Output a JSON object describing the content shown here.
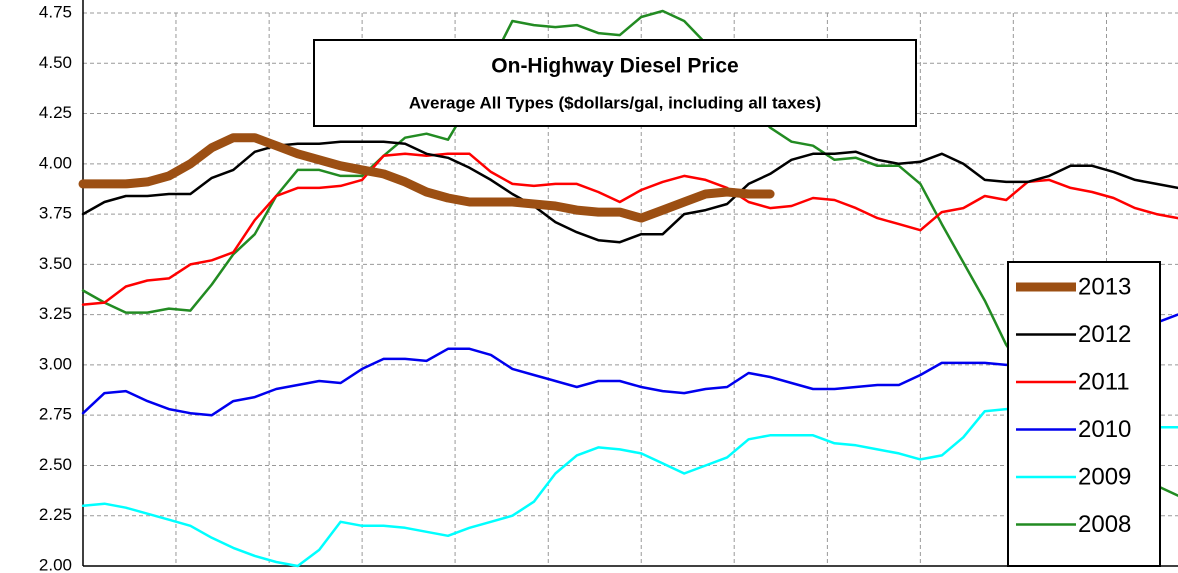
{
  "chart_data": {
    "type": "line",
    "title": "On-Highway Diesel Price",
    "subtitle": "Average All Types ($dollars/gal, including all taxes)",
    "x": [
      1,
      2,
      3,
      4,
      5,
      6,
      7,
      8,
      9,
      10,
      11,
      12,
      13,
      14,
      15,
      16,
      17,
      18,
      19,
      20,
      21,
      22,
      23,
      24,
      25,
      26,
      27,
      28,
      29,
      30,
      31,
      32,
      33,
      34,
      35,
      36,
      37,
      38,
      39,
      40,
      41,
      42,
      43,
      44,
      45,
      46,
      47,
      48,
      49,
      50,
      51,
      52
    ],
    "xlim": [
      1,
      52
    ],
    "xticks": [
      1,
      5.33,
      9.67,
      14,
      18.33,
      22.67,
      27,
      31.33,
      35.67,
      40,
      44.33,
      48.67
    ],
    "ylim": [
      2,
      4.75
    ],
    "yticks": [
      {
        "value": 2,
        "label": "2.00"
      },
      {
        "value": 2.25,
        "label": "2.25"
      },
      {
        "value": 2.5,
        "label": "2.50"
      },
      {
        "value": 2.75,
        "label": "2.75"
      },
      {
        "value": 3,
        "label": "3.00"
      },
      {
        "value": 3.25,
        "label": "3.25"
      },
      {
        "value": 3.5,
        "label": "3.50"
      },
      {
        "value": 3.75,
        "label": "3.75"
      },
      {
        "value": 4,
        "label": "4.00"
      },
      {
        "value": 4.25,
        "label": "4.25"
      },
      {
        "value": 4.5,
        "label": "4.50"
      },
      {
        "value": 4.75,
        "label": "4.75"
      }
    ],
    "grid": true,
    "legend": "bottom-right",
    "series": [
      {
        "name": "2013",
        "color": "#9c4f13",
        "width": 9,
        "values": [
          3.9,
          3.9,
          3.9,
          3.91,
          3.94,
          4.0,
          4.08,
          4.13,
          4.13,
          4.09,
          4.05,
          4.02,
          3.99,
          3.97,
          3.95,
          3.91,
          3.86,
          3.83,
          3.81,
          3.81,
          3.81,
          3.8,
          3.79,
          3.77,
          3.76,
          3.76,
          3.73,
          3.77,
          3.81,
          3.85,
          3.86,
          3.85,
          3.85,
          null,
          null,
          null,
          null,
          null,
          null,
          null,
          null,
          null,
          null,
          null,
          null,
          null,
          null,
          null,
          null,
          null,
          null,
          null
        ]
      },
      {
        "name": "2012",
        "color": "#000000",
        "width": 2.5,
        "values": [
          3.75,
          3.81,
          3.84,
          3.84,
          3.85,
          3.85,
          3.93,
          3.97,
          4.06,
          4.09,
          4.1,
          4.1,
          4.11,
          4.11,
          4.11,
          4.1,
          4.05,
          4.03,
          3.98,
          3.92,
          3.85,
          3.79,
          3.71,
          3.66,
          3.62,
          3.61,
          3.65,
          3.65,
          3.75,
          3.77,
          3.8,
          3.9,
          3.95,
          4.02,
          4.05,
          4.05,
          4.06,
          4.02,
          4.0,
          4.01,
          4.05,
          4.0,
          3.92,
          3.91,
          3.91,
          3.94,
          3.99,
          3.99,
          3.96,
          3.92,
          3.9,
          3.88
        ]
      },
      {
        "name": "2011",
        "color": "#ff0000",
        "width": 2.5,
        "values": [
          3.3,
          3.31,
          3.39,
          3.42,
          3.43,
          3.5,
          3.52,
          3.56,
          3.72,
          3.84,
          3.88,
          3.88,
          3.89,
          3.92,
          4.04,
          4.05,
          4.04,
          4.05,
          4.05,
          3.96,
          3.9,
          3.89,
          3.9,
          3.9,
          3.86,
          3.81,
          3.87,
          3.91,
          3.94,
          3.92,
          3.88,
          3.81,
          3.78,
          3.79,
          3.83,
          3.82,
          3.78,
          3.73,
          3.7,
          3.67,
          3.76,
          3.78,
          3.84,
          3.82,
          3.91,
          3.92,
          3.88,
          3.86,
          3.83,
          3.78,
          3.75,
          3.73
        ]
      },
      {
        "name": "2010",
        "color": "#0000ee",
        "width": 2.5,
        "values": [
          2.76,
          2.86,
          2.87,
          2.82,
          2.78,
          2.76,
          2.75,
          2.82,
          2.84,
          2.88,
          2.9,
          2.92,
          2.91,
          2.98,
          3.03,
          3.03,
          3.02,
          3.08,
          3.08,
          3.05,
          2.98,
          2.95,
          2.92,
          2.89,
          2.92,
          2.92,
          2.89,
          2.87,
          2.86,
          2.88,
          2.89,
          2.96,
          2.94,
          2.91,
          2.88,
          2.88,
          2.89,
          2.9,
          2.9,
          2.95,
          3.01,
          3.01,
          3.01,
          3.0,
          3.0,
          3.06,
          3.1,
          3.15,
          3.18,
          3.19,
          3.21,
          3.25
        ]
      },
      {
        "name": "2009",
        "color": "#00ffff",
        "width": 2.5,
        "values": [
          2.3,
          2.31,
          2.29,
          2.26,
          2.23,
          2.2,
          2.14,
          2.09,
          2.05,
          2.02,
          2.0,
          2.08,
          2.22,
          2.2,
          2.2,
          2.19,
          2.17,
          2.15,
          2.19,
          2.22,
          2.25,
          2.32,
          2.46,
          2.55,
          2.59,
          2.58,
          2.56,
          2.51,
          2.46,
          2.5,
          2.54,
          2.63,
          2.65,
          2.65,
          2.65,
          2.61,
          2.6,
          2.58,
          2.56,
          2.53,
          2.55,
          2.64,
          2.77,
          2.78,
          2.78,
          2.76,
          2.74,
          2.72,
          2.71,
          2.7,
          2.69,
          2.69
        ]
      },
      {
        "name": "2008",
        "color": "#228b22",
        "width": 2.5,
        "values": [
          3.37,
          3.31,
          3.26,
          3.26,
          3.28,
          3.27,
          3.4,
          3.55,
          3.65,
          3.84,
          3.97,
          3.97,
          3.94,
          3.94,
          4.04,
          4.13,
          4.15,
          4.12,
          4.3,
          4.5,
          4.71,
          4.69,
          4.68,
          4.69,
          4.65,
          4.64,
          4.73,
          4.76,
          4.71,
          4.6,
          4.45,
          4.3,
          4.18,
          4.11,
          4.09,
          4.02,
          4.03,
          3.99,
          3.99,
          3.9,
          3.7,
          3.51,
          3.32,
          3.1,
          2.95,
          2.8,
          2.68,
          2.58,
          2.5,
          2.45,
          2.4,
          2.35
        ]
      }
    ]
  }
}
